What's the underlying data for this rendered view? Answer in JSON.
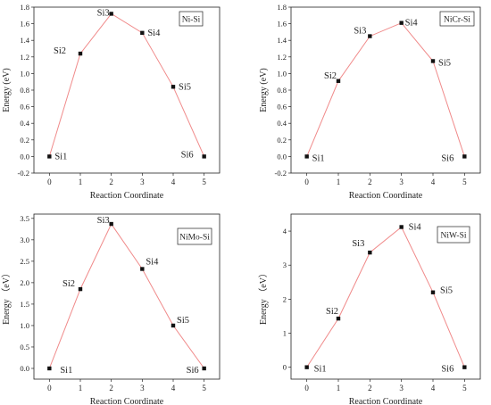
{
  "chart_data": [
    {
      "type": "line",
      "legend": "Ni-Si",
      "xlabel": "Reaction Coordinate",
      "ylabel": "Energy (eV)",
      "xlim": [
        -0.5,
        5.5
      ],
      "ylim": [
        -0.2,
        1.8
      ],
      "xticks": [
        0,
        1,
        2,
        3,
        4,
        5
      ],
      "yticks": [
        -0.2,
        0.0,
        0.2,
        0.4,
        0.6,
        0.8,
        1.0,
        1.2,
        1.4,
        1.6,
        1.8
      ],
      "x": [
        0,
        1,
        2,
        3,
        4,
        5
      ],
      "y": [
        0.0,
        1.24,
        1.72,
        1.49,
        0.84,
        0.0
      ],
      "point_labels": [
        "Si1",
        "Si2",
        "Si3",
        "Si4",
        "Si5",
        "Si6"
      ]
    },
    {
      "type": "line",
      "legend": "NiCr-Si",
      "xlabel": "Reaction Coordinate",
      "ylabel": "Energy (eV)",
      "xlim": [
        -0.5,
        5.5
      ],
      "ylim": [
        -0.2,
        1.8
      ],
      "xticks": [
        0,
        1,
        2,
        3,
        4,
        5
      ],
      "yticks": [
        -0.2,
        0.0,
        0.2,
        0.4,
        0.6,
        0.8,
        1.0,
        1.2,
        1.4,
        1.6,
        1.8
      ],
      "x": [
        0,
        1,
        2,
        3,
        4,
        5
      ],
      "y": [
        0.0,
        0.91,
        1.45,
        1.61,
        1.15,
        0.0
      ],
      "point_labels": [
        "Si1",
        "Si2",
        "Si3",
        "Si4",
        "Si5",
        "Si6"
      ]
    },
    {
      "type": "line",
      "legend": "NiMo-Si",
      "xlabel": "Reaction Coordinate",
      "ylabel": "Energy （eV）",
      "xlim": [
        -0.5,
        5.5
      ],
      "ylim": [
        -0.25,
        3.6
      ],
      "xticks": [
        0,
        1,
        2,
        3,
        4,
        5
      ],
      "yticks": [
        0.0,
        0.5,
        1.0,
        1.5,
        2.0,
        2.5,
        3.0,
        3.5
      ],
      "x": [
        0,
        1,
        2,
        3,
        4,
        5
      ],
      "y": [
        0.0,
        1.85,
        3.37,
        2.32,
        1.0,
        0.0
      ],
      "point_labels": [
        "Si1",
        "Si2",
        "Si3",
        "Si4",
        "Si5",
        "Si6"
      ]
    },
    {
      "type": "line",
      "legend": "NiW-Si",
      "xlabel": "Reaction Coordinate",
      "ylabel": "Energy （eV）",
      "xlim": [
        -0.5,
        5.5
      ],
      "ylim": [
        -0.35,
        4.5
      ],
      "xticks": [
        0,
        1,
        2,
        3,
        4,
        5
      ],
      "yticks": [
        0,
        1,
        2,
        3,
        4
      ],
      "x": [
        0,
        1,
        2,
        3,
        4,
        5
      ],
      "y": [
        0.0,
        1.43,
        3.37,
        4.12,
        2.2,
        0.0
      ],
      "point_labels": [
        "Si1",
        "Si2",
        "Si3",
        "Si4",
        "Si5",
        "Si6"
      ]
    }
  ]
}
